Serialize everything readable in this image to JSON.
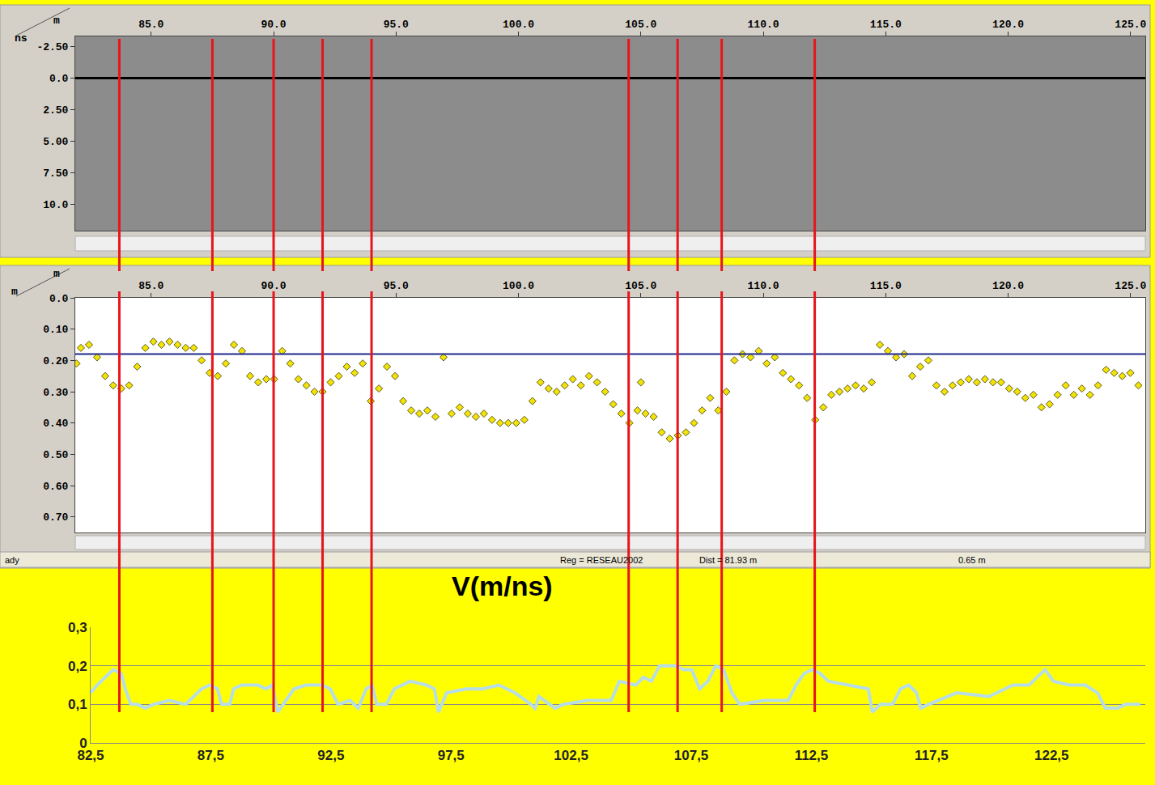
{
  "chart_data": [
    {
      "type": "image",
      "x_unit": "m",
      "y_unit": "ns",
      "xlim": [
        81.9,
        125.6
      ],
      "xticks": [
        {
          "value": 85,
          "label": "85.0"
        },
        {
          "value": 90,
          "label": "90.0"
        },
        {
          "value": 95,
          "label": "95.0"
        },
        {
          "value": 100,
          "label": "100.0"
        },
        {
          "value": 105,
          "label": "105.0"
        },
        {
          "value": 110,
          "label": "110.0"
        },
        {
          "value": 115,
          "label": "115.0"
        },
        {
          "value": 120,
          "label": "120.0"
        },
        {
          "value": 125,
          "label": "125.0"
        }
      ],
      "ylim": [
        12.1,
        -3.3
      ],
      "yticks": [
        {
          "value": -2.5,
          "label": "-2.50"
        },
        {
          "value": 0,
          "label": "0.0"
        },
        {
          "value": 2.5,
          "label": "2.50"
        },
        {
          "value": 5,
          "label": "5.00"
        },
        {
          "value": 7.5,
          "label": "7.50"
        },
        {
          "value": 10,
          "label": "10.0"
        }
      ],
      "hline": {
        "y": 0,
        "color": "#000000"
      }
    },
    {
      "type": "scatter",
      "x_unit": "m",
      "y_unit": "m",
      "xlim": [
        81.9,
        125.6
      ],
      "xticks": [
        {
          "value": 85,
          "label": "85.0"
        },
        {
          "value": 90,
          "label": "90.0"
        },
        {
          "value": 95,
          "label": "95.0"
        },
        {
          "value": 100,
          "label": "100.0"
        },
        {
          "value": 105,
          "label": "105.0"
        },
        {
          "value": 110,
          "label": "110.0"
        },
        {
          "value": 115,
          "label": "115.0"
        },
        {
          "value": 120,
          "label": "120.0"
        },
        {
          "value": 125,
          "label": "125.0"
        }
      ],
      "ylim": [
        0.75,
        0
      ],
      "yticks": [
        {
          "value": 0,
          "label": "0.0"
        },
        {
          "value": 0.1,
          "label": "0.10"
        },
        {
          "value": 0.2,
          "label": "0.20"
        },
        {
          "value": 0.3,
          "label": "0.30"
        },
        {
          "value": 0.4,
          "label": "0.40"
        },
        {
          "value": 0.5,
          "label": "0.50"
        },
        {
          "value": 0.6,
          "label": "0.60"
        },
        {
          "value": 0.7,
          "label": "0.70"
        }
      ],
      "color": "#f2e205",
      "marker": "diamond",
      "hline": {
        "y": 0.18,
        "color": "#1f2a8c"
      },
      "x": [
        81.95,
        82.13,
        82.46,
        82.79,
        83.12,
        83.45,
        83.78,
        84.1,
        84.43,
        84.76,
        85.09,
        85.42,
        85.75,
        86.08,
        86.41,
        86.74,
        87.06,
        87.39,
        87.72,
        88.05,
        88.38,
        88.71,
        89.04,
        89.37,
        89.7,
        90.02,
        90.35,
        90.68,
        91.01,
        91.34,
        91.67,
        92.0,
        92.33,
        92.66,
        92.99,
        93.31,
        93.64,
        93.97,
        94.3,
        94.63,
        94.96,
        95.29,
        95.62,
        95.95,
        96.28,
        96.61,
        96.94,
        97.27,
        97.6,
        97.93,
        98.26,
        98.59,
        98.92,
        99.25,
        99.58,
        99.91,
        100.24,
        100.57,
        100.9,
        101.23,
        101.56,
        101.89,
        102.22,
        102.55,
        102.88,
        103.21,
        103.54,
        103.87,
        104.2,
        104.53,
        104.86,
        105.0,
        105.19,
        105.52,
        105.85,
        106.18,
        106.51,
        106.84,
        107.17,
        107.5,
        107.83,
        108.16,
        108.49,
        108.82,
        109.15,
        109.48,
        109.81,
        110.14,
        110.47,
        110.8,
        111.13,
        111.46,
        111.79,
        112.12,
        112.45,
        112.78,
        113.11,
        113.44,
        113.77,
        114.1,
        114.43,
        114.76,
        115.09,
        115.42,
        115.75,
        116.08,
        116.41,
        116.74,
        117.07,
        117.4,
        117.73,
        118.06,
        118.39,
        118.72,
        119.05,
        119.38,
        119.71,
        120.04,
        120.37,
        120.7,
        121.03,
        121.36,
        121.69,
        122.02,
        122.35,
        122.68,
        123.01,
        123.34,
        123.67,
        124.0,
        124.33,
        124.66,
        124.99,
        125.32
      ],
      "values": [
        0.21,
        0.16,
        0.15,
        0.19,
        0.25,
        0.28,
        0.29,
        0.28,
        0.22,
        0.16,
        0.14,
        0.15,
        0.14,
        0.15,
        0.16,
        0.16,
        0.2,
        0.24,
        0.25,
        0.21,
        0.15,
        0.17,
        0.25,
        0.27,
        0.26,
        0.26,
        0.17,
        0.21,
        0.26,
        0.28,
        0.3,
        0.3,
        0.27,
        0.25,
        0.22,
        0.24,
        0.21,
        0.33,
        0.29,
        0.22,
        0.25,
        0.33,
        0.36,
        0.37,
        0.36,
        0.38,
        0.19,
        0.37,
        0.35,
        0.37,
        0.38,
        0.37,
        0.39,
        0.4,
        0.4,
        0.4,
        0.39,
        0.33,
        0.27,
        0.29,
        0.3,
        0.28,
        0.26,
        0.28,
        0.25,
        0.27,
        0.3,
        0.34,
        0.37,
        0.4,
        0.36,
        0.27,
        0.37,
        0.38,
        0.43,
        0.45,
        0.44,
        0.43,
        0.4,
        0.36,
        0.32,
        0.36,
        0.3,
        0.2,
        0.18,
        0.19,
        0.17,
        0.21,
        0.19,
        0.24,
        0.26,
        0.28,
        0.32,
        0.39,
        0.35,
        0.31,
        0.3,
        0.29,
        0.28,
        0.29,
        0.27,
        0.15,
        0.17,
        0.19,
        0.18,
        0.25,
        0.22,
        0.2,
        0.28,
        0.3,
        0.28,
        0.27,
        0.26,
        0.27,
        0.26,
        0.27,
        0.27,
        0.29,
        0.3,
        0.32,
        0.31,
        0.35,
        0.34,
        0.31,
        0.28,
        0.31,
        0.29,
        0.31,
        0.28,
        0.23,
        0.24,
        0.25,
        0.24,
        0.28
      ]
    },
    {
      "type": "line",
      "title": "V(m/ns)",
      "xlim": [
        82.5,
        126.4
      ],
      "xticks": [
        {
          "value": 82.5,
          "label": "82,5"
        },
        {
          "value": 87.5,
          "label": "87,5"
        },
        {
          "value": 92.5,
          "label": "92,5"
        },
        {
          "value": 97.5,
          "label": "97,5"
        },
        {
          "value": 102.5,
          "label": "102,5"
        },
        {
          "value": 107.5,
          "label": "107,5"
        },
        {
          "value": 112.5,
          "label": "112,5"
        },
        {
          "value": 117.5,
          "label": "117,5"
        },
        {
          "value": 122.5,
          "label": "122,5"
        }
      ],
      "ylim": [
        0,
        0.3
      ],
      "yticks": [
        0,
        {
          "value": 0.1,
          "label": "0,1"
        },
        {
          "value": 0.2,
          "label": "0,2"
        },
        {
          "value": 0.3,
          "label": "0,3"
        }
      ],
      "grid": true,
      "color": "#b7dde8",
      "x": [
        82.5,
        82.77,
        83.1,
        83.44,
        83.77,
        83.94,
        84.17,
        84.44,
        84.77,
        85.11,
        85.78,
        86.45,
        87.12,
        87.45,
        87.78,
        87.95,
        88.29,
        88.45,
        88.79,
        89.46,
        89.79,
        90.06,
        90.29,
        90.63,
        90.96,
        91.46,
        92.13,
        92.47,
        92.8,
        93.3,
        93.64,
        93.97,
        94.21,
        94.41,
        94.81,
        95.14,
        95.81,
        96.48,
        96.81,
        96.98,
        97.32,
        98.15,
        98.82,
        99.49,
        100.16,
        100.83,
        101.0,
        101.16,
        101.83,
        102.17,
        103.17,
        104.17,
        104.51,
        105.18,
        105.51,
        105.84,
        106.18,
        106.51,
        106.85,
        107.18,
        107.52,
        107.85,
        108.19,
        108.52,
        108.85,
        109.19,
        109.52,
        110.53,
        111.53,
        111.86,
        112.2,
        112.53,
        112.87,
        113.2,
        114.04,
        114.87,
        115.04,
        115.38,
        115.88,
        116.21,
        116.55,
        116.88,
        117.05,
        117.38,
        118.55,
        119.89,
        120.56,
        120.89,
        121.56,
        122.23,
        122.57,
        123.24,
        123.9,
        124.41,
        124.74,
        125.24,
        125.58,
        126.2
      ],
      "values": [
        0.13,
        0.15,
        0.17,
        0.19,
        0.18,
        0.14,
        0.1,
        0.1,
        0.09,
        0.1,
        0.11,
        0.1,
        0.14,
        0.15,
        0.14,
        0.1,
        0.1,
        0.14,
        0.15,
        0.15,
        0.14,
        0.15,
        0.08,
        0.11,
        0.14,
        0.15,
        0.15,
        0.14,
        0.1,
        0.11,
        0.09,
        0.14,
        0.15,
        0.1,
        0.1,
        0.14,
        0.16,
        0.15,
        0.14,
        0.08,
        0.13,
        0.14,
        0.14,
        0.15,
        0.13,
        0.1,
        0.09,
        0.12,
        0.09,
        0.1,
        0.11,
        0.11,
        0.16,
        0.15,
        0.17,
        0.16,
        0.2,
        0.2,
        0.2,
        0.19,
        0.19,
        0.14,
        0.16,
        0.2,
        0.19,
        0.13,
        0.1,
        0.11,
        0.11,
        0.15,
        0.18,
        0.19,
        0.18,
        0.16,
        0.15,
        0.14,
        0.08,
        0.1,
        0.1,
        0.14,
        0.15,
        0.13,
        0.09,
        0.1,
        0.13,
        0.12,
        0.14,
        0.15,
        0.15,
        0.19,
        0.16,
        0.15,
        0.15,
        0.13,
        0.09,
        0.09,
        0.1,
        0.1
      ]
    }
  ],
  "guide_lines": {
    "x": [
      83.7,
      87.5,
      90.0,
      92.0,
      94.0,
      104.5,
      106.5,
      108.3,
      112.1
    ],
    "color": "#e8141c"
  },
  "status_bar": [
    "ady",
    "Reg = RESEAU2002",
    "Dist = 81.93 m",
    "0.65 m"
  ]
}
